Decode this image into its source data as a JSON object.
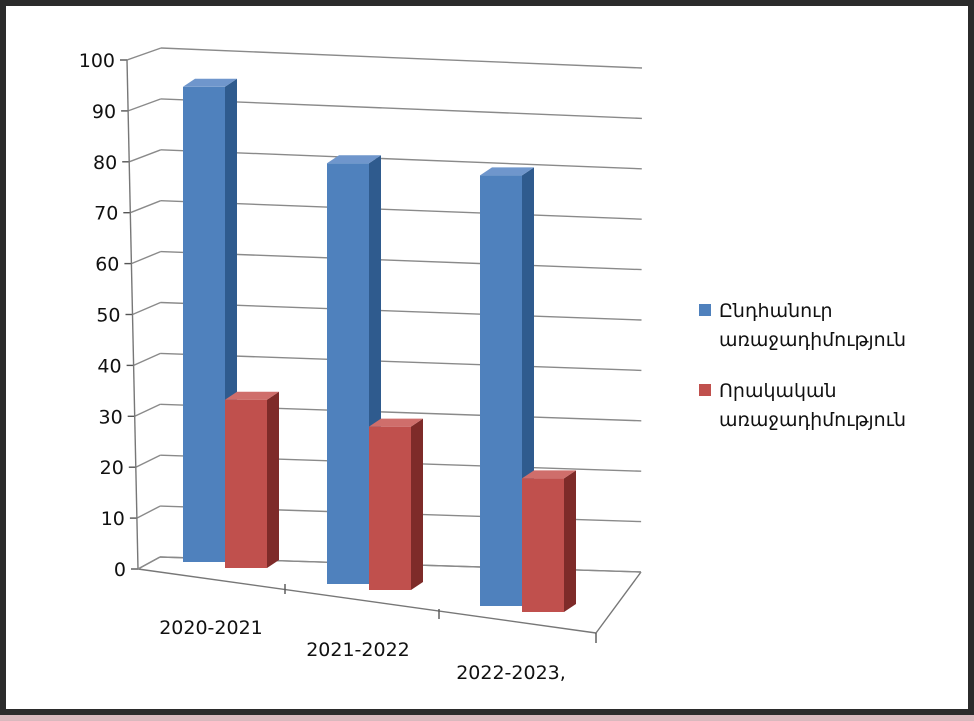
{
  "chart_data": {
    "type": "bar",
    "categories": [
      "2020-2021",
      "2021-2022",
      "2022-2023,"
    ],
    "series": [
      {
        "name": "Ընդհանուր առաջադիմություն",
        "values": [
          96,
          85,
          87
        ],
        "color": "#4f81bd",
        "side_color": "#2f5b8e",
        "top_color": "#6f96cc"
      },
      {
        "name": "Որակական առաջադիմություն",
        "values": [
          34,
          33,
          27
        ],
        "color": "#c0504d",
        "side_color": "#7e2b29",
        "top_color": "#cf6e6b"
      }
    ],
    "ylim": [
      0,
      100
    ],
    "yticks": [
      0,
      10,
      20,
      30,
      40,
      50,
      60,
      70,
      80,
      90,
      100
    ],
    "grid": true,
    "legend_position": "right",
    "title": "",
    "xlabel": "",
    "ylabel": ""
  },
  "legend": {
    "items": [
      {
        "line1": "Ընդհանուր",
        "line2": "առաջադիմություն",
        "color": "#4f81bd"
      },
      {
        "line1": "Որակական",
        "line2": "առաջադիմություն",
        "color": "#c0504d"
      }
    ]
  }
}
